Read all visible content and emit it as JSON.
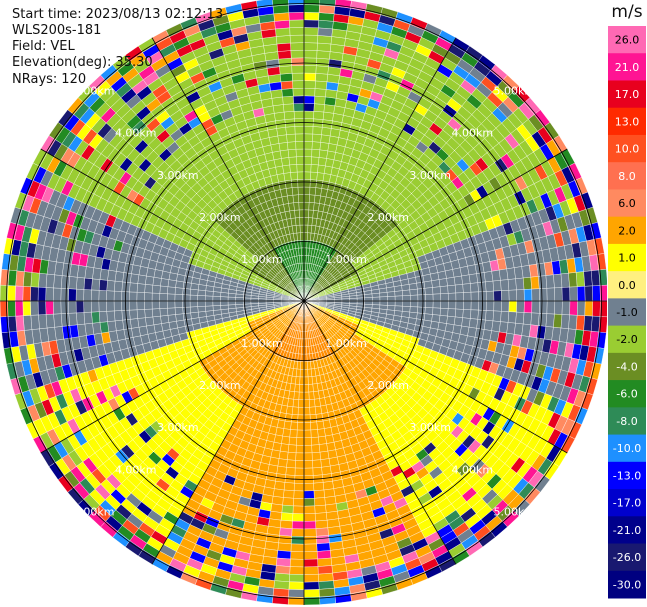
{
  "header": {
    "start_time_label": "Start time:",
    "start_time": "2023/08/13 02:12:13",
    "instrument": "WLS200s-181",
    "field_label": "Field:",
    "field": "VEL",
    "elevation_label": "Elevation(deg):",
    "elevation": "35.30",
    "nrays_label": "NRays:",
    "nrays": "120"
  },
  "range_rings": [
    "1.00km",
    "2.00km",
    "3.00km",
    "4.00km",
    "5.00km"
  ],
  "colorbar": {
    "unit": "m/s",
    "ticks": [
      "26.0",
      "21.0",
      "17.0",
      "13.0",
      "10.0",
      "8.0",
      "6.0",
      "2.0",
      "1.0",
      "0.0",
      "-1.0",
      "-2.0",
      "-4.0",
      "-6.0",
      "-8.0",
      "-10.0",
      "-13.0",
      "-17.0",
      "-21.0",
      "-26.0",
      "-30.0"
    ],
    "colors": [
      "#ff69b4",
      "#ff1493",
      "#e8001e",
      "#ff2a00",
      "#ff5020",
      "#ff7050",
      "#ff8a60",
      "#ffa500",
      "#ffff00",
      "#fff080",
      "#708090",
      "#9acd32",
      "#6b8e23",
      "#228b22",
      "#2e8b57",
      "#1e90ff",
      "#0000ff",
      "#0000cd",
      "#00008b",
      "#191970",
      "#000080"
    ]
  },
  "chart_data": {
    "type": "ppi",
    "field": "VEL",
    "units": "m/s",
    "nrays": 120,
    "elevation_deg": 35.3,
    "range_rings_km": [
      1,
      2,
      3,
      4,
      5
    ],
    "pattern": "near-range (< ~1.3 km) approaching velocities (green, -2 to -6 m/s) toward north, receding (orange/yellow, 2 to 8 m/s) toward south, near-zero (grey) to east and west; far range noisy multicolour speckle"
  }
}
